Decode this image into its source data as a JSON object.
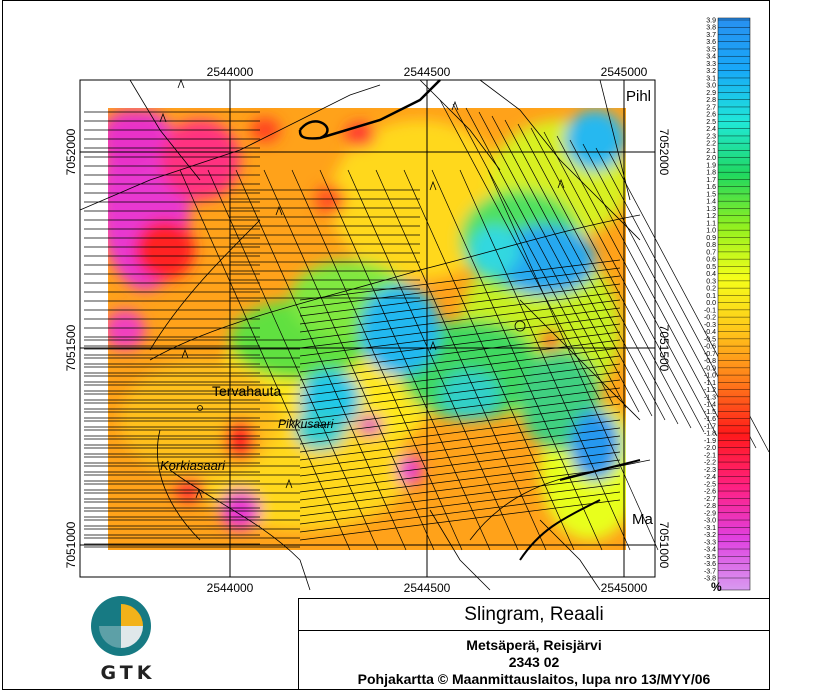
{
  "title": {
    "main": "Slingram, Reaali",
    "line1": "Metsäperä, Reisjärvi",
    "line2": "2343  02",
    "line3": "Pohjakartta © Maanmittauslaitos, lupa nro 13/MYY/06"
  },
  "logo": {
    "text": "GTK",
    "icon": "gtk-globe-logo"
  },
  "map": {
    "x_ticks_top": [
      "2544000",
      "2544500",
      "2545000"
    ],
    "x_ticks_bottom": [
      "2544000",
      "2544500",
      "2545000"
    ],
    "y_ticks_left": [
      "7052000",
      "7051500",
      "7051000"
    ],
    "y_ticks_right": [
      "7052000",
      "7051500",
      "7051000"
    ],
    "place_names": [
      "Tervahauta",
      "Pikkusaari",
      "Korkiasaari",
      "Pihl",
      "Ma"
    ]
  },
  "legend": {
    "unit": "%",
    "max": 3.9,
    "min": -3.8,
    "step": 0.1,
    "colors": [
      "#d89af0",
      "#e040e0",
      "#ff2080",
      "#ff1a1a",
      "#ff7b1a",
      "#ffc81a",
      "#f5ff1a",
      "#90f020",
      "#20d860",
      "#20e8d8",
      "#18a8f8",
      "#2890f0"
    ]
  }
}
